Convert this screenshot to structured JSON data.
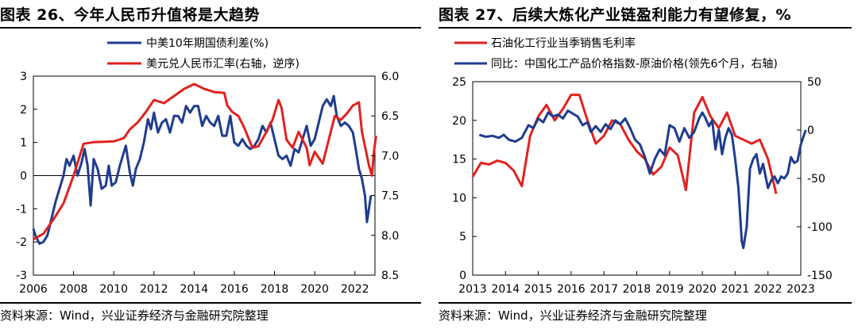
{
  "chart_data": [
    {
      "type": "line",
      "figure_title": "图表 26、今年人民币升值将是大趋势",
      "source": "资料来源：Wind，兴业证券经济与金融研究院整理",
      "x_ticks": [
        "2006",
        "2008",
        "2010",
        "2012",
        "2014",
        "2016",
        "2018",
        "2020",
        "2022"
      ],
      "xlim": [
        2006,
        2023
      ],
      "left_axis": {
        "ylim": [
          -3,
          3
        ],
        "ticks": [
          "3",
          "2",
          "1",
          "0",
          "-1",
          "-2",
          "-3"
        ]
      },
      "right_axis": {
        "ylim": [
          6.0,
          8.5
        ],
        "inverted": true,
        "ticks": [
          "6.0",
          "6.5",
          "7.0",
          "7.5",
          "8.0",
          "8.5"
        ]
      },
      "series": [
        {
          "name": "中美10年期国债利差(%)",
          "axis": "left",
          "color": "#1f3c8f",
          "points": [
            [
              2006.0,
              -1.6
            ],
            [
              2006.1,
              -1.8
            ],
            [
              2006.3,
              -2.05
            ],
            [
              2006.5,
              -2.0
            ],
            [
              2006.7,
              -1.8
            ],
            [
              2006.9,
              -1.3
            ],
            [
              2007.1,
              -0.8
            ],
            [
              2007.3,
              -0.4
            ],
            [
              2007.5,
              0.0
            ],
            [
              2007.65,
              0.5
            ],
            [
              2007.8,
              0.3
            ],
            [
              2008.0,
              0.6
            ],
            [
              2008.2,
              0.0
            ],
            [
              2008.4,
              0.4
            ],
            [
              2008.55,
              0.8
            ],
            [
              2008.7,
              0.3
            ],
            [
              2008.85,
              -0.9
            ],
            [
              2009.0,
              0.5
            ],
            [
              2009.2,
              0.2
            ],
            [
              2009.4,
              -0.4
            ],
            [
              2009.6,
              -0.3
            ],
            [
              2009.75,
              0.3
            ],
            [
              2009.9,
              -0.3
            ],
            [
              2010.1,
              -0.2
            ],
            [
              2010.3,
              0.3
            ],
            [
              2010.6,
              0.9
            ],
            [
              2010.8,
              0.1
            ],
            [
              2010.95,
              -0.3
            ],
            [
              2011.1,
              0.2
            ],
            [
              2011.3,
              0.5
            ],
            [
              2011.5,
              1.0
            ],
            [
              2011.7,
              1.7
            ],
            [
              2011.85,
              1.4
            ],
            [
              2012.0,
              1.9
            ],
            [
              2012.2,
              1.3
            ],
            [
              2012.4,
              1.6
            ],
            [
              2012.6,
              1.7
            ],
            [
              2012.8,
              1.3
            ],
            [
              2013.0,
              1.8
            ],
            [
              2013.2,
              1.8
            ],
            [
              2013.4,
              1.6
            ],
            [
              2013.6,
              2.1
            ],
            [
              2013.8,
              1.9
            ],
            [
              2014.0,
              2.1
            ],
            [
              2014.2,
              2.1
            ],
            [
              2014.4,
              1.5
            ],
            [
              2014.6,
              1.8
            ],
            [
              2014.8,
              1.6
            ],
            [
              2015.0,
              1.5
            ],
            [
              2015.2,
              1.8
            ],
            [
              2015.4,
              1.2
            ],
            [
              2015.6,
              1.2
            ],
            [
              2015.8,
              1.8
            ],
            [
              2016.0,
              1.0
            ],
            [
              2016.2,
              0.9
            ],
            [
              2016.4,
              1.1
            ],
            [
              2016.6,
              0.9
            ],
            [
              2016.8,
              0.8
            ],
            [
              2017.0,
              0.9
            ],
            [
              2017.2,
              1.1
            ],
            [
              2017.4,
              1.5
            ],
            [
              2017.6,
              1.3
            ],
            [
              2017.8,
              1.6
            ],
            [
              2018.0,
              1.1
            ],
            [
              2018.2,
              0.6
            ],
            [
              2018.4,
              0.5
            ],
            [
              2018.6,
              0.6
            ],
            [
              2018.8,
              0.3
            ],
            [
              2019.0,
              0.8
            ],
            [
              2019.2,
              0.7
            ],
            [
              2019.4,
              1.1
            ],
            [
              2019.6,
              1.5
            ],
            [
              2019.8,
              0.9
            ],
            [
              2020.0,
              1.1
            ],
            [
              2020.2,
              1.6
            ],
            [
              2020.4,
              2.1
            ],
            [
              2020.6,
              2.3
            ],
            [
              2020.8,
              2.1
            ],
            [
              2020.95,
              2.4
            ],
            [
              2021.1,
              1.8
            ],
            [
              2021.3,
              1.5
            ],
            [
              2021.5,
              1.6
            ],
            [
              2021.7,
              1.5
            ],
            [
              2021.9,
              1.3
            ],
            [
              2022.1,
              0.6
            ],
            [
              2022.2,
              0.2
            ],
            [
              2022.35,
              -0.1
            ],
            [
              2022.5,
              -0.6
            ],
            [
              2022.6,
              -1.4
            ],
            [
              2022.7,
              -1.0
            ],
            [
              2022.8,
              -0.6
            ]
          ]
        },
        {
          "name": "美元兑人民币汇率(右轴，逆序)",
          "axis": "right",
          "color": "#e0221f",
          "points": [
            [
              2006.0,
              8.05
            ],
            [
              2006.5,
              7.98
            ],
            [
              2007.0,
              7.8
            ],
            [
              2007.5,
              7.6
            ],
            [
              2008.0,
              7.25
            ],
            [
              2008.5,
              6.85
            ],
            [
              2009.0,
              6.83
            ],
            [
              2010.0,
              6.82
            ],
            [
              2010.5,
              6.78
            ],
            [
              2010.8,
              6.67
            ],
            [
              2011.2,
              6.58
            ],
            [
              2011.6,
              6.45
            ],
            [
              2012.0,
              6.3
            ],
            [
              2012.5,
              6.34
            ],
            [
              2013.0,
              6.25
            ],
            [
              2013.5,
              6.16
            ],
            [
              2014.0,
              6.1
            ],
            [
              2014.5,
              6.16
            ],
            [
              2015.0,
              6.2
            ],
            [
              2015.5,
              6.21
            ],
            [
              2015.65,
              6.37
            ],
            [
              2015.9,
              6.45
            ],
            [
              2016.2,
              6.5
            ],
            [
              2016.5,
              6.65
            ],
            [
              2016.9,
              6.9
            ],
            [
              2017.2,
              6.88
            ],
            [
              2017.6,
              6.7
            ],
            [
              2017.9,
              6.55
            ],
            [
              2018.2,
              6.3
            ],
            [
              2018.35,
              6.4
            ],
            [
              2018.6,
              6.8
            ],
            [
              2018.9,
              6.9
            ],
            [
              2019.2,
              6.7
            ],
            [
              2019.6,
              6.9
            ],
            [
              2019.75,
              7.12
            ],
            [
              2020.0,
              6.95
            ],
            [
              2020.4,
              7.1
            ],
            [
              2020.7,
              6.8
            ],
            [
              2021.0,
              6.5
            ],
            [
              2021.3,
              6.55
            ],
            [
              2021.6,
              6.47
            ],
            [
              2021.9,
              6.37
            ],
            [
              2022.2,
              6.33
            ],
            [
              2022.35,
              6.7
            ],
            [
              2022.7,
              7.12
            ],
            [
              2022.85,
              7.25
            ],
            [
              2022.95,
              6.95
            ],
            [
              2023.05,
              6.75
            ]
          ]
        }
      ]
    },
    {
      "type": "line",
      "figure_title": "图表 27、后续大炼化产业链盈利能力有望修复，%",
      "source": "资料来源：Wind，兴业证券经济与金融研究院整理",
      "x_ticks": [
        "2013",
        "2014",
        "2015",
        "2016",
        "2017",
        "2018",
        "2019",
        "2020",
        "2021",
        "2022",
        "2023"
      ],
      "xlim": [
        2013,
        2023
      ],
      "left_axis": {
        "ylim": [
          0,
          25
        ],
        "ticks": [
          "25",
          "20",
          "15",
          "10",
          "5",
          "0"
        ]
      },
      "right_axis": {
        "ylim": [
          -150,
          50
        ],
        "inverted": false,
        "ticks": [
          "50",
          "0",
          "-50",
          "-100",
          "-150"
        ]
      },
      "series": [
        {
          "name": "石油化工行业当季销售毛利率",
          "axis": "left",
          "color": "#e0221f",
          "points": [
            [
              2013.0,
              12.7
            ],
            [
              2013.25,
              14.5
            ],
            [
              2013.5,
              14.3
            ],
            [
              2013.75,
              14.8
            ],
            [
              2014.0,
              14.5
            ],
            [
              2014.25,
              13.5
            ],
            [
              2014.5,
              11.5
            ],
            [
              2014.75,
              18.0
            ],
            [
              2015.0,
              20.5
            ],
            [
              2015.25,
              22.0
            ],
            [
              2015.5,
              20.0
            ],
            [
              2015.75,
              21.5
            ],
            [
              2016.0,
              23.3
            ],
            [
              2016.25,
              23.3
            ],
            [
              2016.5,
              20.0
            ],
            [
              2016.75,
              17.0
            ],
            [
              2017.0,
              18.0
            ],
            [
              2017.25,
              20.0
            ],
            [
              2017.5,
              19.5
            ],
            [
              2017.75,
              17.5
            ],
            [
              2018.0,
              16.0
            ],
            [
              2018.25,
              15.0
            ],
            [
              2018.5,
              13.0
            ],
            [
              2018.75,
              14.0
            ],
            [
              2019.0,
              16.5
            ],
            [
              2019.25,
              15.5
            ],
            [
              2019.5,
              11.0
            ],
            [
              2019.75,
              21.0
            ],
            [
              2020.0,
              23.0
            ],
            [
              2020.25,
              20.5
            ],
            [
              2020.5,
              19.0
            ],
            [
              2020.75,
              21.0
            ],
            [
              2021.0,
              18.0
            ],
            [
              2021.25,
              17.5
            ],
            [
              2021.5,
              17.0
            ],
            [
              2021.75,
              17.5
            ],
            [
              2022.0,
              15.0
            ],
            [
              2022.25,
              10.5
            ]
          ]
        },
        {
          "name": "同比：中国化工产品价格指数-原油价格(领先6个月，右轴)",
          "axis": "right",
          "color": "#1f3c8f",
          "points": [
            [
              2013.2,
              -5
            ],
            [
              2013.4,
              -7
            ],
            [
              2013.6,
              -6
            ],
            [
              2013.8,
              -8
            ],
            [
              2013.95,
              -5
            ],
            [
              2014.1,
              -10
            ],
            [
              2014.3,
              -12
            ],
            [
              2014.5,
              -8
            ],
            [
              2014.7,
              5
            ],
            [
              2014.85,
              2
            ],
            [
              2015.0,
              12
            ],
            [
              2015.15,
              8
            ],
            [
              2015.3,
              18
            ],
            [
              2015.45,
              14
            ],
            [
              2015.6,
              16
            ],
            [
              2015.75,
              12
            ],
            [
              2015.9,
              20
            ],
            [
              2016.05,
              17
            ],
            [
              2016.2,
              14
            ],
            [
              2016.35,
              5
            ],
            [
              2016.5,
              8
            ],
            [
              2016.6,
              -2
            ],
            [
              2016.75,
              4
            ],
            [
              2016.9,
              -2
            ],
            [
              2017.05,
              6
            ],
            [
              2017.2,
              1
            ],
            [
              2017.35,
              10
            ],
            [
              2017.5,
              6
            ],
            [
              2017.65,
              12
            ],
            [
              2017.8,
              2
            ],
            [
              2017.95,
              -10
            ],
            [
              2018.1,
              -15
            ],
            [
              2018.25,
              -28
            ],
            [
              2018.4,
              -45
            ],
            [
              2018.55,
              -30
            ],
            [
              2018.7,
              -20
            ],
            [
              2018.85,
              -26
            ],
            [
              2019.0,
              5
            ],
            [
              2019.15,
              2
            ],
            [
              2019.3,
              -12
            ],
            [
              2019.45,
              2
            ],
            [
              2019.6,
              -8
            ],
            [
              2019.75,
              -2
            ],
            [
              2019.9,
              12
            ],
            [
              2020.0,
              18
            ],
            [
              2020.1,
              12
            ],
            [
              2020.2,
              4
            ],
            [
              2020.3,
              10
            ],
            [
              2020.4,
              -20
            ],
            [
              2020.5,
              0
            ],
            [
              2020.6,
              -25
            ],
            [
              2020.7,
              -8
            ],
            [
              2020.8,
              2
            ],
            [
              2020.9,
              -5
            ],
            [
              2021.0,
              -30
            ],
            [
              2021.1,
              -60
            ],
            [
              2021.2,
              -115
            ],
            [
              2021.25,
              -122
            ],
            [
              2021.35,
              -100
            ],
            [
              2021.45,
              -40
            ],
            [
              2021.55,
              -30
            ],
            [
              2021.65,
              -25
            ],
            [
              2021.75,
              -45
            ],
            [
              2021.85,
              -35
            ],
            [
              2022.0,
              -60
            ],
            [
              2022.1,
              -52
            ],
            [
              2022.2,
              -48
            ],
            [
              2022.3,
              -55
            ],
            [
              2022.4,
              -48
            ],
            [
              2022.5,
              -50
            ],
            [
              2022.6,
              -45
            ],
            [
              2022.7,
              -28
            ],
            [
              2022.8,
              -34
            ],
            [
              2022.9,
              -32
            ],
            [
              2023.0,
              -15
            ],
            [
              2023.15,
              0
            ]
          ]
        }
      ]
    }
  ]
}
